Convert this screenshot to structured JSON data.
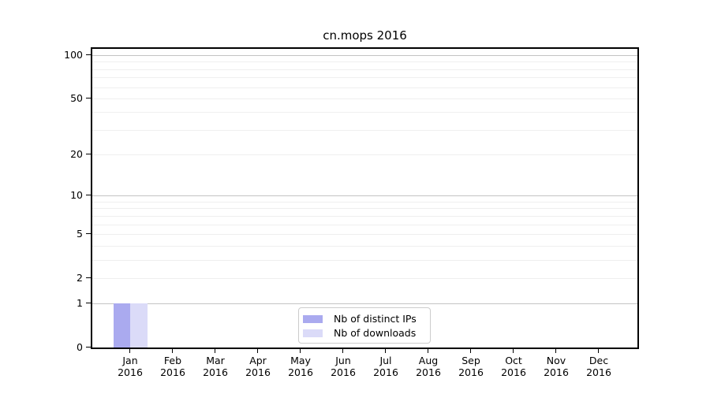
{
  "figure": {
    "background": "#ffffff",
    "text_color": "#000000",
    "axis_color": "#000000",
    "grid_major_color": "#c4c4c4",
    "grid_minor_color": "#efefef"
  },
  "chart_data": {
    "type": "bar",
    "title": "cn.mops 2016",
    "categories": [
      "Jan 2016",
      "Feb 2016",
      "Mar 2016",
      "Apr 2016",
      "May 2016",
      "Jun 2016",
      "Jul 2016",
      "Aug 2016",
      "Sep 2016",
      "Oct 2016",
      "Nov 2016",
      "Dec 2016"
    ],
    "series": [
      {
        "name": "Nb of distinct IPs",
        "color": "#aaaaef",
        "values": [
          1,
          0,
          0,
          0,
          0,
          0,
          0,
          0,
          0,
          0,
          0,
          0
        ]
      },
      {
        "name": "Nb of downloads",
        "color": "#dbdbf8",
        "values": [
          1,
          0,
          0,
          0,
          0,
          0,
          0,
          0,
          0,
          0,
          0,
          0
        ]
      }
    ],
    "yscale": "log1p",
    "yticks": [
      0,
      1,
      2,
      5,
      10,
      20,
      50,
      100
    ],
    "ylim": [
      0,
      113
    ],
    "major_gridlines": [
      1,
      10,
      100
    ],
    "minor_gridlines": [
      2,
      3,
      4,
      5,
      6,
      7,
      8,
      9,
      20,
      30,
      40,
      50,
      60,
      70,
      80,
      90
    ],
    "grid": true,
    "legend_position": "lower center",
    "legend": {
      "items": [
        {
          "label": "Nb of distinct IPs",
          "color": "#aaaaef"
        },
        {
          "label": "Nb of downloads",
          "color": "#dbdbf8"
        }
      ]
    }
  }
}
